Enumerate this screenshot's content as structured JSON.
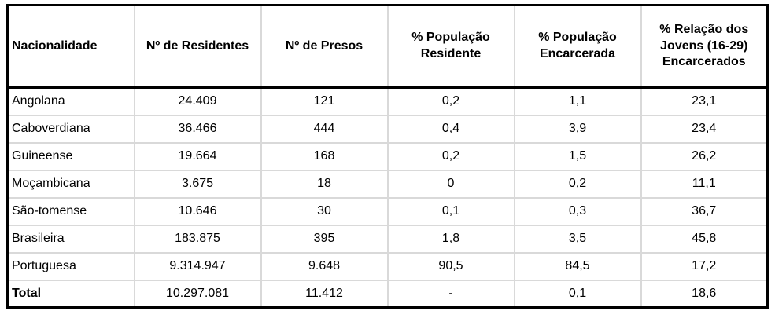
{
  "colors": {
    "outer_border": "#000000",
    "grid_line": "#d9d9d9",
    "background": "#ffffff",
    "text": "#000000"
  },
  "chart_data": {
    "type": "table",
    "columns": [
      "Nacionalidade",
      "Nº de Residentes",
      "Nº de Presos",
      "% População Residente",
      "% População Encarcerada",
      "% Relação dos Jovens (16-29) Encarcerados"
    ],
    "rows": [
      [
        "Angolana",
        "24.409",
        "121",
        "0,2",
        "1,1",
        "23,1"
      ],
      [
        "Caboverdiana",
        "36.466",
        "444",
        "0,4",
        "3,9",
        "23,4"
      ],
      [
        "Guineense",
        "19.664",
        "168",
        "0,2",
        "1,5",
        "26,2"
      ],
      [
        "Moçambicana",
        "3.675",
        "18",
        "0",
        "0,2",
        "11,1"
      ],
      [
        "São-tomense",
        "10.646",
        "30",
        "0,1",
        "0,3",
        "36,7"
      ],
      [
        "Brasileira",
        "183.875",
        "395",
        "1,8",
        "3,5",
        "45,8"
      ],
      [
        "Portuguesa",
        "9.314.947",
        "9.648",
        "90,5",
        "84,5",
        "17,2"
      ],
      [
        "Total",
        "10.297.081",
        "11.412",
        "-",
        "0,1",
        "18,6"
      ]
    ]
  }
}
